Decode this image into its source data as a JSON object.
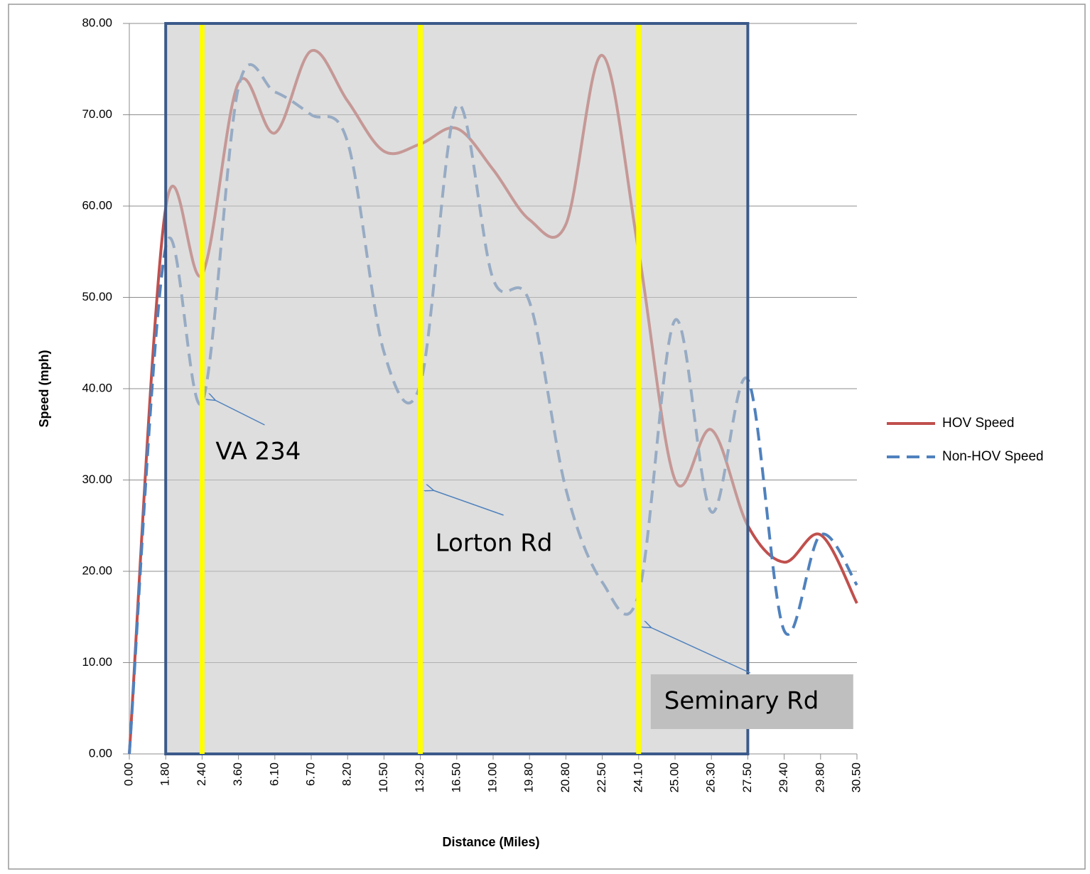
{
  "chart_data": {
    "type": "line",
    "y_label": "Speed (mph)",
    "x_label": "Distance (Miles)",
    "categories": [
      "0.00",
      "1.80",
      "2.40",
      "3.60",
      "6.10",
      "6.70",
      "8.20",
      "10.50",
      "13.20",
      "16.50",
      "19.00",
      "19.80",
      "20.80",
      "22.50",
      "24.10",
      "25.00",
      "26.30",
      "27.50",
      "29.40",
      "29.80",
      "30.50"
    ],
    "series": [
      {
        "name": "HOV Speed",
        "color": "#c0504d",
        "dash": false,
        "values": [
          0,
          59.8,
          52.5,
          73.5,
          68,
          77,
          71.5,
          66,
          66.8,
          68.5,
          64,
          58.5,
          58,
          76.5,
          55,
          30,
          35.5,
          25,
          21,
          24,
          16.5
        ]
      },
      {
        "name": "Non-HOV Speed",
        "color": "#4f81bd",
        "dash": true,
        "values": [
          0,
          55.5,
          38.5,
          73,
          72.5,
          70,
          67,
          44,
          40.5,
          71,
          52,
          49.5,
          29,
          18.8,
          17.5,
          47.5,
          26.5,
          41,
          13.5,
          24,
          18.5
        ]
      }
    ],
    "ylim": [
      0,
      80
    ],
    "yticks": [
      {
        "value": 0,
        "label": "0.00"
      },
      {
        "value": 10,
        "label": "10.00"
      },
      {
        "value": 20,
        "label": "20.00"
      },
      {
        "value": 30,
        "label": "30.00"
      },
      {
        "value": 40,
        "label": "40.00"
      },
      {
        "value": 50,
        "label": "50.00"
      },
      {
        "value": 60,
        "label": "60.00"
      },
      {
        "value": 70,
        "label": "70.00"
      },
      {
        "value": 80,
        "label": "80.00"
      }
    ],
    "grid": true,
    "legend": "right",
    "shaded_range": {
      "from": "1.80",
      "to": "27.50"
    },
    "annotations": [
      {
        "text": "VA 234",
        "category": "2.40"
      },
      {
        "text": "Lorton Rd",
        "category": "13.20"
      },
      {
        "text": "Seminary Rd",
        "category": "24.10"
      }
    ]
  }
}
